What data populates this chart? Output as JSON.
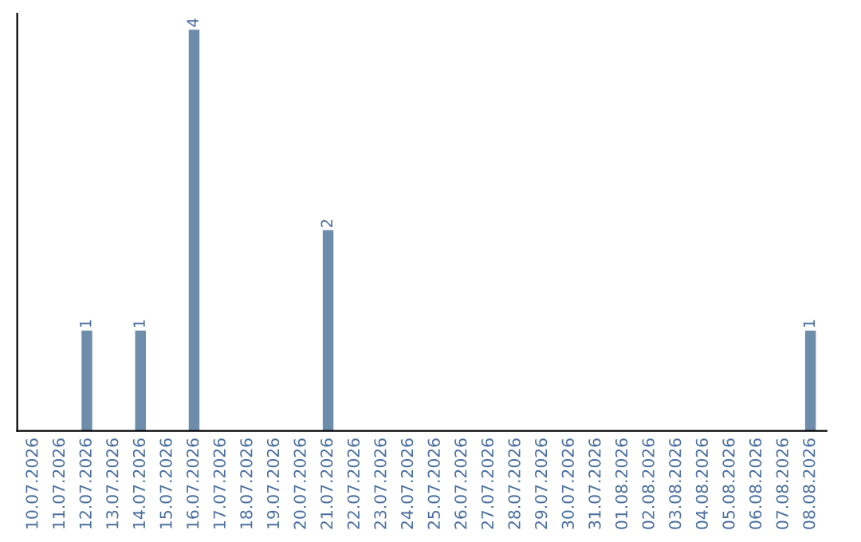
{
  "chart_data": {
    "type": "bar",
    "categories": [
      "10.07.2026",
      "11.07.2026",
      "12.07.2026",
      "13.07.2026",
      "14.07.2026",
      "15.07.2026",
      "16.07.2026",
      "17.07.2026",
      "18.07.2026",
      "19.07.2026",
      "20.07.2026",
      "21.07.2026",
      "22.07.2026",
      "23.07.2026",
      "24.07.2026",
      "25.07.2026",
      "26.07.2026",
      "27.07.2026",
      "28.07.2026",
      "29.07.2026",
      "30.07.2026",
      "31.07.2026",
      "01.08.2026",
      "02.08.2026",
      "03.08.2026",
      "04.08.2026",
      "05.08.2026",
      "06.08.2026",
      "07.08.2026",
      "08.08.2026"
    ],
    "values": [
      0,
      0,
      1,
      0,
      1,
      0,
      4,
      0,
      0,
      0,
      0,
      2,
      0,
      0,
      0,
      0,
      0,
      0,
      0,
      0,
      0,
      0,
      0,
      0,
      0,
      0,
      0,
      0,
      0,
      1
    ],
    "color": "#6d8dab",
    "value_labels": [
      null,
      null,
      "1",
      null,
      "1",
      null,
      "4",
      null,
      null,
      null,
      null,
      "2",
      null,
      null,
      null,
      null,
      null,
      null,
      null,
      null,
      null,
      null,
      null,
      null,
      null,
      null,
      null,
      null,
      null,
      "1"
    ],
    "tick_labels": "x",
    "grid": false
  }
}
